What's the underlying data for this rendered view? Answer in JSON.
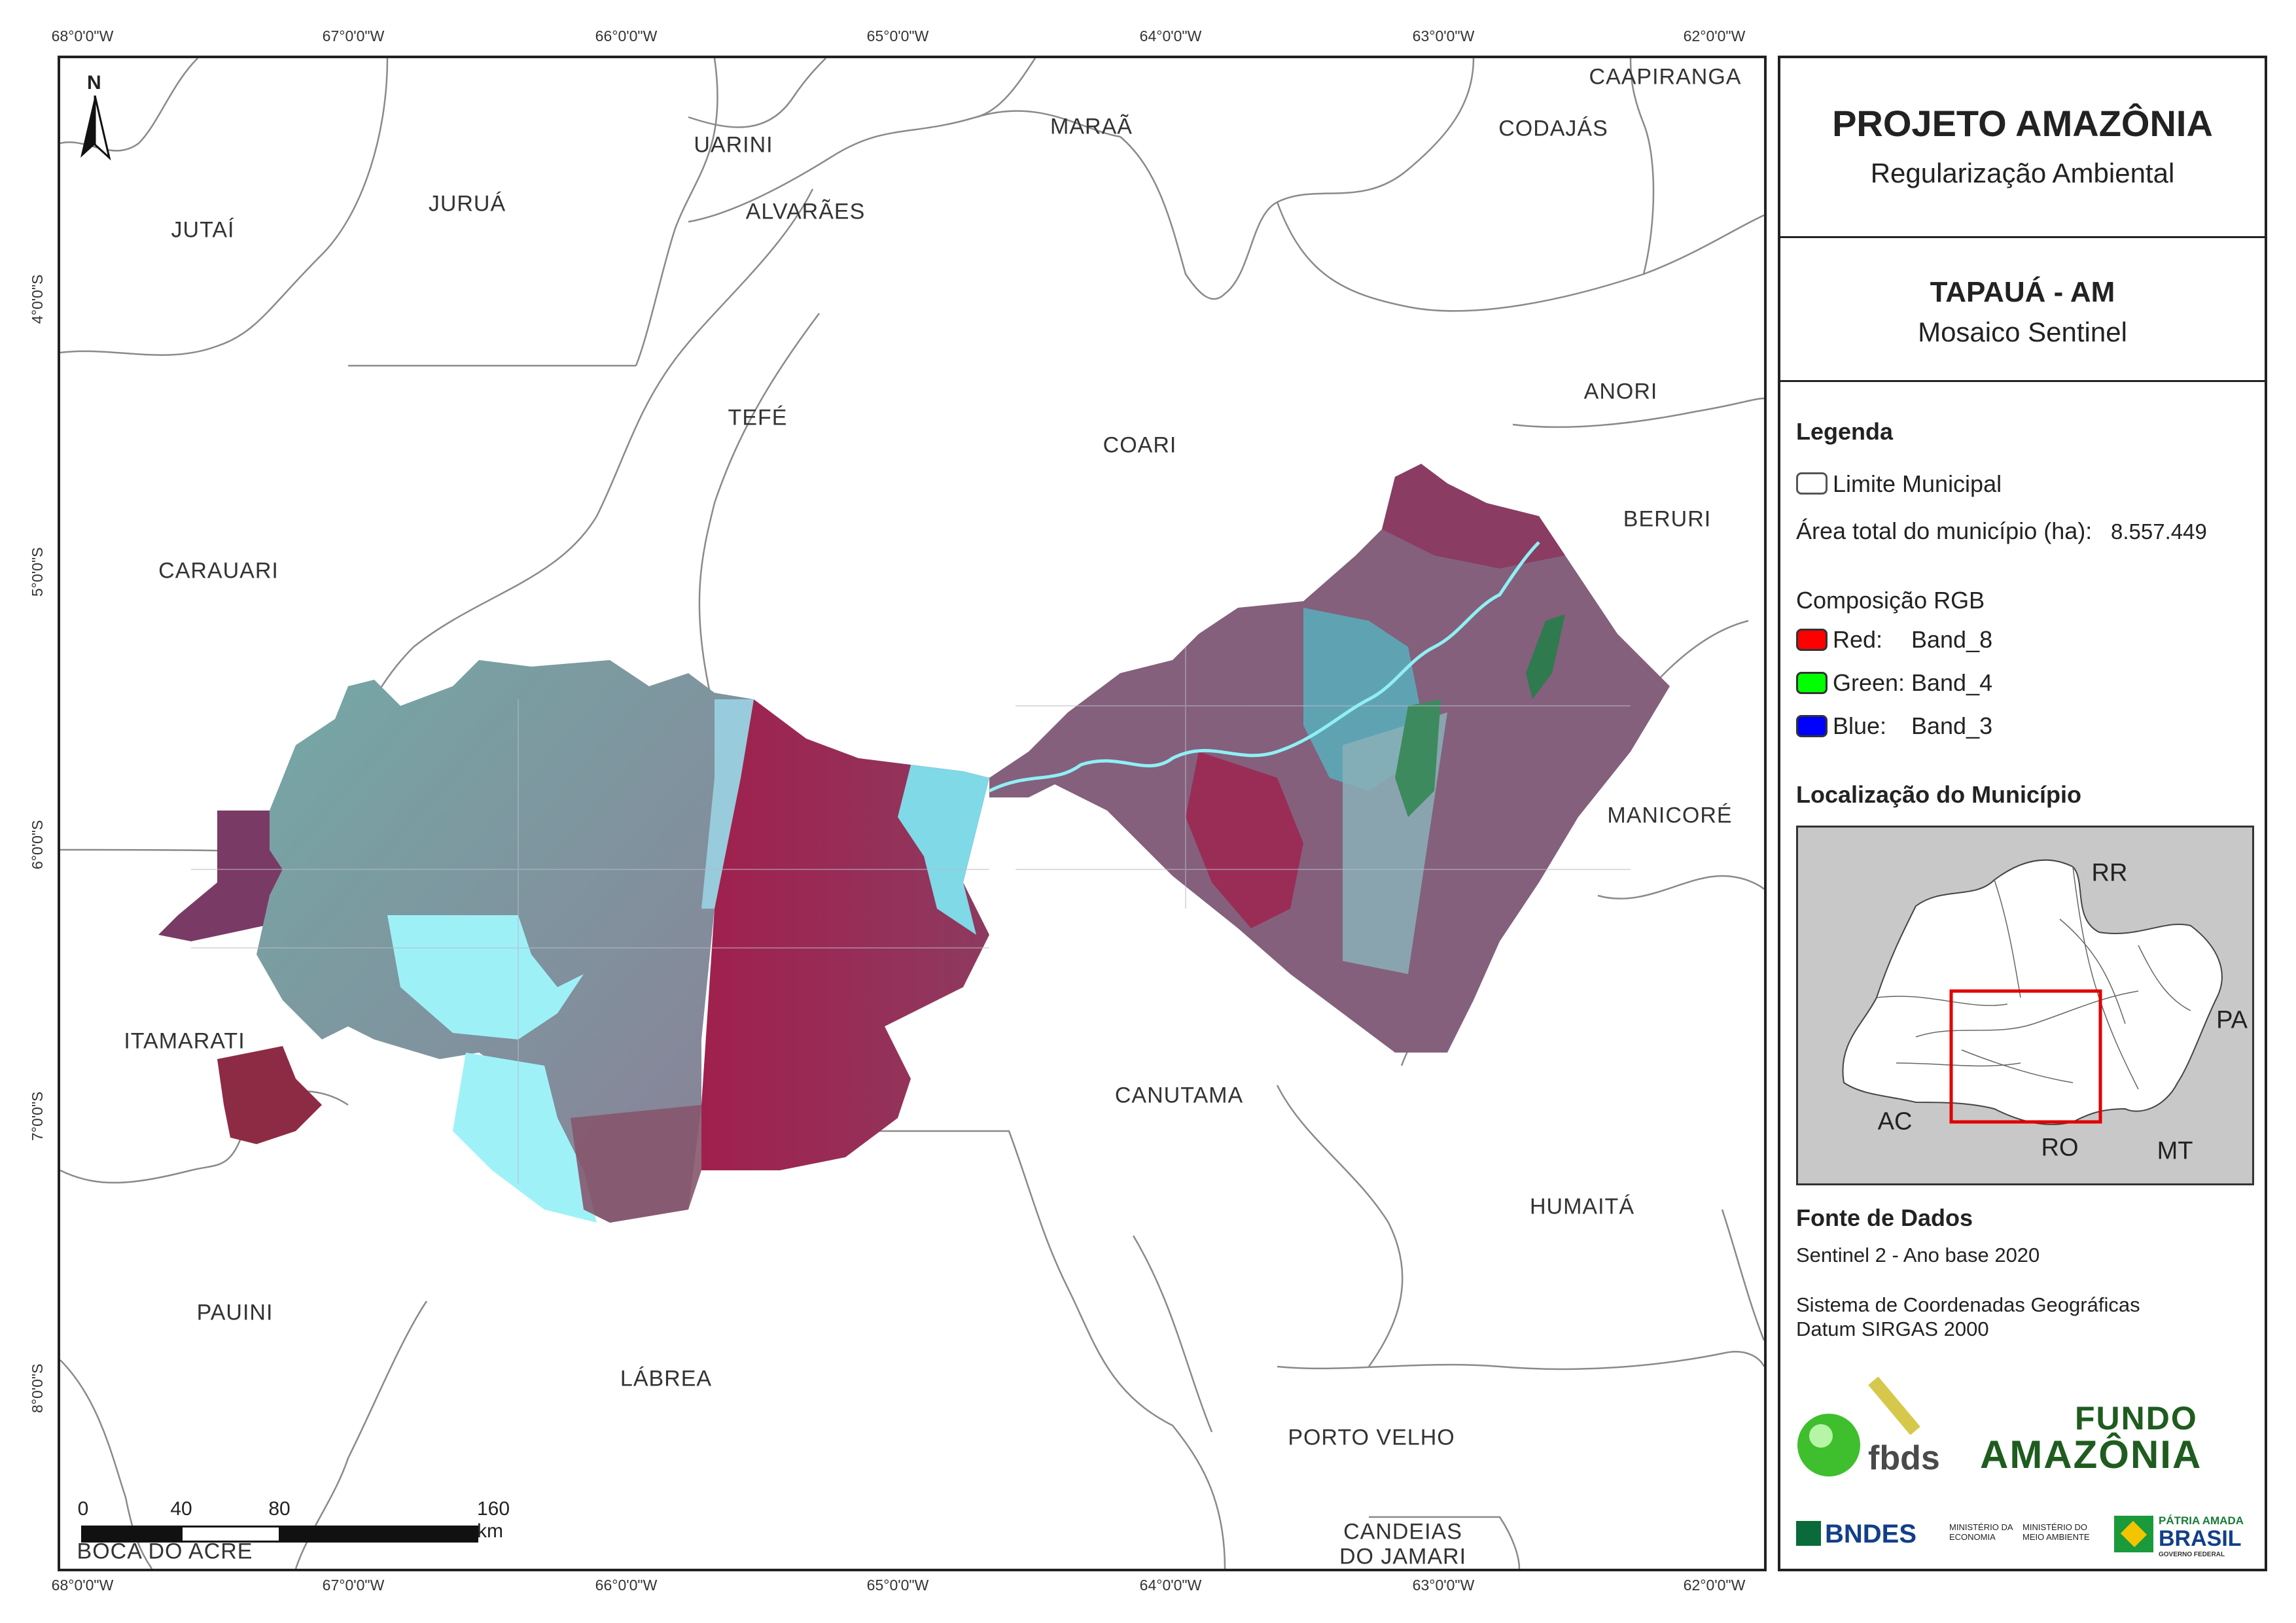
{
  "panel": {
    "title": "PROJETO AMAZÔNIA",
    "subtitle": "Regularização Ambiental",
    "municipality": "TAPAUÁ - AM",
    "map_type": "Mosaico Sentinel"
  },
  "legend": {
    "heading": "Legenda",
    "limit_label": "Limite Municipal",
    "area_label": "Área total do município (ha):",
    "area_value": "8.557.449",
    "rgb_heading": "Composição RGB",
    "bands": [
      {
        "channel": "Red:",
        "band": "Band_8",
        "color": "#ff0000"
      },
      {
        "channel": "Green:",
        "band": "Band_4",
        "color": "#00ff00"
      },
      {
        "channel": "Blue:",
        "band": "Band_3",
        "color": "#0000ff"
      }
    ]
  },
  "location": {
    "heading": "Localização do Município",
    "states": [
      "RR",
      "PA",
      "AC",
      "RO",
      "MT"
    ]
  },
  "sources": {
    "heading": "Fonte de Dados",
    "line1": "Sentinel 2 - Ano base 2020",
    "line2": "Sistema de Coordenadas Geográficas",
    "line3": "Datum SIRGAS 2000"
  },
  "logos": {
    "fbds": "fbds",
    "fundo_line1": "FUNDO",
    "fundo_line2": "AMAZÔNIA",
    "bndes": "BNDES",
    "min_economia": "MINISTÉRIO DA ECONOMIA",
    "min_meio": "MINISTÉRIO DO MEIO AMBIENTE",
    "patria_line1": "PÁTRIA AMADA",
    "patria_line2": "BRASIL",
    "patria_line3": "GOVERNO FEDERAL"
  },
  "map": {
    "north": "N",
    "lon_ticks": [
      "68°0'0\"W",
      "67°0'0\"W",
      "66°0'0\"W",
      "65°0'0\"W",
      "64°0'0\"W",
      "63°0'0\"W",
      "62°0'0\"W"
    ],
    "lat_ticks": [
      "4°0'0\"S",
      "5°0'0\"S",
      "6°0'0\"S",
      "7°0'0\"S",
      "8°0'0\"S"
    ],
    "municipalities": [
      "CAAPIRANGA",
      "CODAJÁS",
      "MARAÃ",
      "UARINI",
      "JURUÁ",
      "ALVARÃES",
      "JUTAÍ",
      "TEFÉ",
      "COARI",
      "ANORI",
      "BERURI",
      "CARAUARI",
      "MANICORÉ",
      "ITAMARATI",
      "CANUTAMA",
      "HUMAITÁ",
      "PAUINI",
      "LÁBREA",
      "PORTO VELHO",
      "CANDEIAS",
      "DO JAMARI",
      "BOCA DO ACRE"
    ],
    "scale": {
      "labels": [
        "0",
        "40",
        "80",
        "160 km"
      ]
    }
  }
}
